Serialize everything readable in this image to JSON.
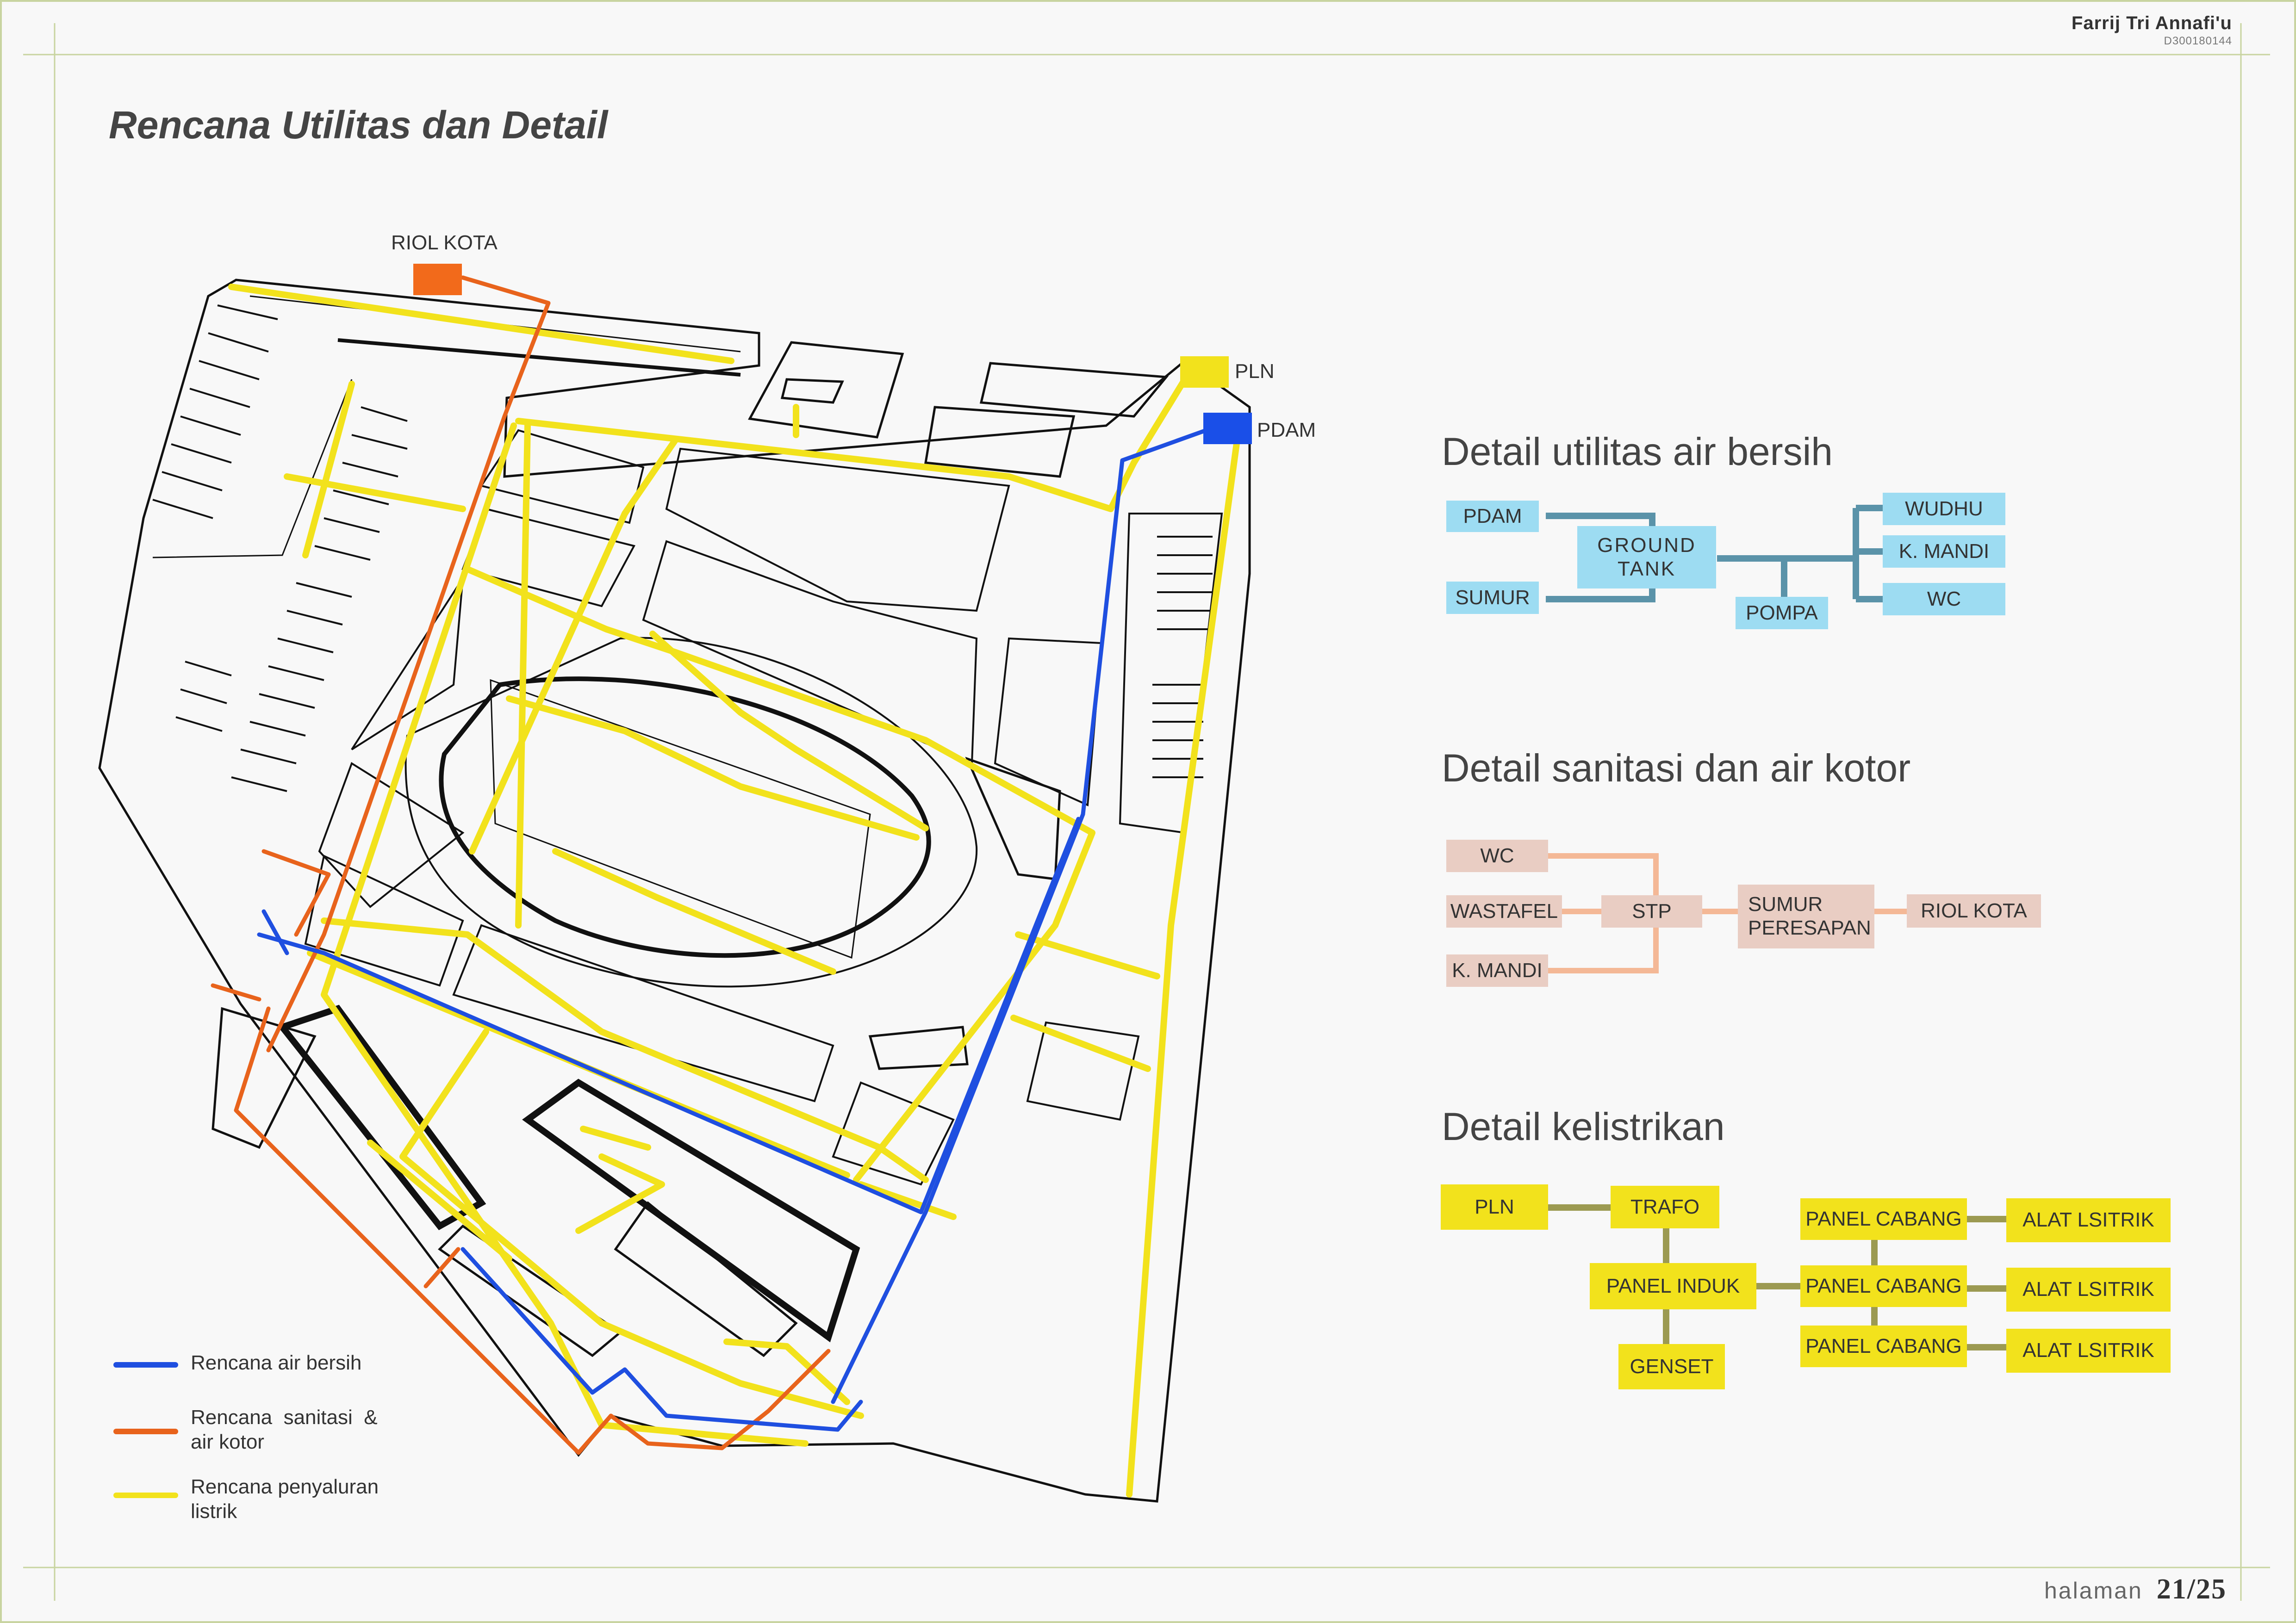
{
  "header": {
    "author": "Farrij Tri Annafi'u",
    "nim": "D300180144"
  },
  "title": "Rencana Utilitas dan Detail",
  "site": {
    "riol_kota": "RIOL KOTA",
    "pln": "PLN",
    "pdam": "PDAM",
    "colors": {
      "air_bersih": "#1f4fe0",
      "sanitasi": "#e8631c",
      "listrik": "#f2e21c",
      "pdam_box": "#1a4fe8",
      "riol_box": "#f26a1b",
      "pln_box": "#f2e21c"
    }
  },
  "legend": [
    {
      "label": "Rencana air bersih",
      "color": "#1f4fe0"
    },
    {
      "label": "Rencana  sanitasi  & air kotor",
      "color": "#e8631c"
    },
    {
      "label": "Rencana penyaluran listrik",
      "color": "#f2e21c"
    }
  ],
  "air_bersih": {
    "title": "Detail utilitas air bersih",
    "pdam": "PDAM",
    "sumur": "SUMUR",
    "ground_tank": "GROUND TANK",
    "pompa": "POMPA",
    "wudhu": "WUDHU",
    "k_mandi": "K. MANDI",
    "wc": "WC",
    "line_color": "#5b93a9"
  },
  "sanitasi": {
    "title": "Detail sanitasi dan air kotor",
    "wc": "WC",
    "wastafel": "WASTAFEL",
    "k_mandi": "K. MANDI",
    "stp": "STP",
    "sumur_peresapan": "SUMUR PERESAPAN",
    "riol_kota": "RIOL KOTA",
    "line_color": "#f4b896"
  },
  "kelistrikan": {
    "title": "Detail kelistrikan",
    "pln": "PLN",
    "trafo": "TRAFO",
    "panel_induk": "PANEL INDUK",
    "genset": "GENSET",
    "panel_cabang": [
      "PANEL CABANG",
      "PANEL CABANG",
      "PANEL CABANG"
    ],
    "alat_listrik": [
      "ALAT LSITRIK",
      "ALAT LSITRIK",
      "ALAT LSITRIK"
    ],
    "line_color": "#9c9a52"
  },
  "footer": {
    "label": "halaman",
    "page": "21/25"
  }
}
